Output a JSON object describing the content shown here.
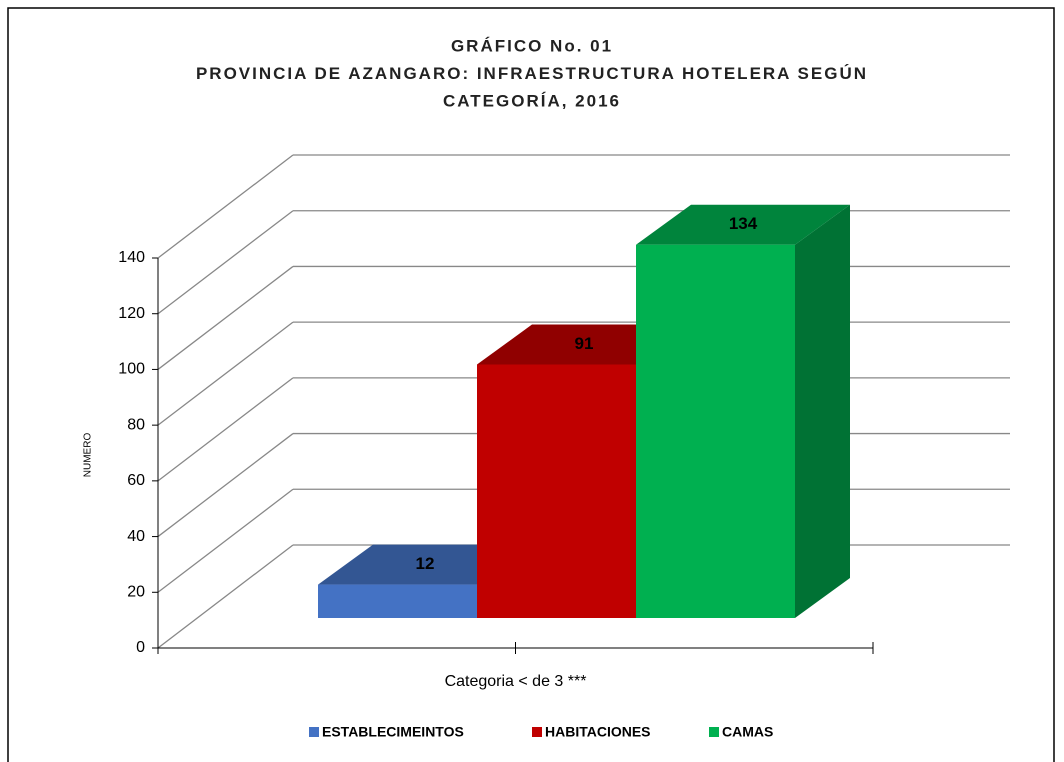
{
  "chart_data": {
    "type": "bar3d",
    "title": [
      "GRÁFICO No. 01",
      "PROVINCIA DE AZANGARO: INFRAESTRUCTURA HOTELERA SEGÚN",
      "CATEGORÍA, 2016"
    ],
    "ylabel": "NUMERO",
    "categories": [
      "Categoria < de 3 ***"
    ],
    "series": [
      {
        "name": "ESTABLECIMEINTOS",
        "color": "#4472c4",
        "values": [
          12
        ]
      },
      {
        "name": "HABITACIONES",
        "color": "#c00000",
        "values": [
          91
        ]
      },
      {
        "name": "CAMAS",
        "color": "#00b050",
        "values": [
          134
        ]
      }
    ],
    "ylim": [
      0,
      140
    ],
    "yticks": [
      0,
      20,
      40,
      60,
      80,
      100,
      120,
      140
    ],
    "grid": true,
    "legend": "bottom"
  }
}
